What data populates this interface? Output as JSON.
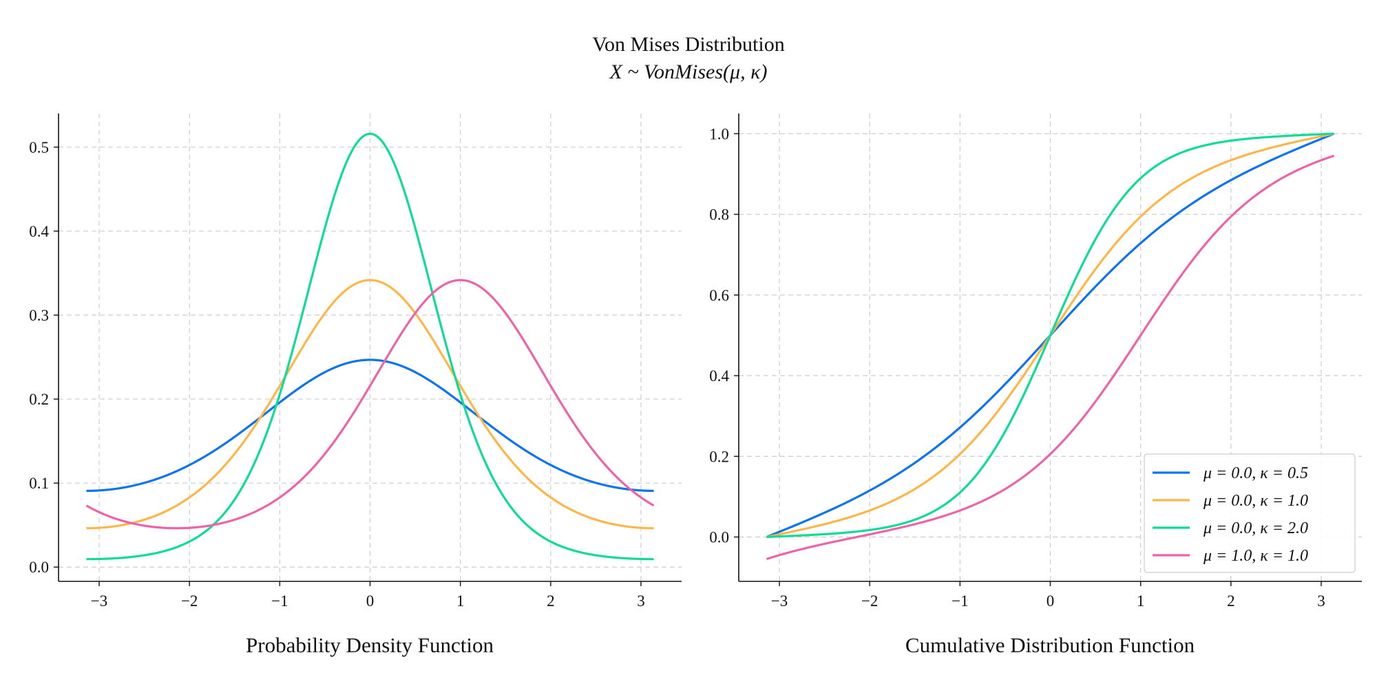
{
  "figure": {
    "title": "Von Mises Distribution",
    "subtitle": "X ~ VonMises(μ, κ)"
  },
  "colors": {
    "blue": "#0a74f0",
    "orange": "#ffb648",
    "green": "#0edc95",
    "pink": "#ee62a8",
    "grid": "#c9ccd6"
  },
  "chart_data": [
    {
      "type": "line",
      "title": "Probability Density Function",
      "xlabel": "",
      "ylabel": "",
      "xlim": [
        -3.45,
        3.45
      ],
      "ylim": [
        -0.017,
        0.54
      ],
      "xticks": [
        -3,
        -2,
        -1,
        0,
        1,
        2,
        3
      ],
      "xtick_labels": [
        "−3",
        "−2",
        "−1",
        "0",
        "1",
        "2",
        "3"
      ],
      "yticks": [
        0.0,
        0.1,
        0.2,
        0.3,
        0.4,
        0.5
      ],
      "ytick_labels": [
        "0.0",
        "0.1",
        "0.2",
        "0.3",
        "0.4",
        "0.5"
      ],
      "grid": true,
      "series": [
        {
          "name": "μ = 0.0, κ = 0.5",
          "color": "blue",
          "kind": "pdf",
          "mu": 0.0,
          "kappa": 0.5
        },
        {
          "name": "μ = 0.0, κ = 1.0",
          "color": "orange",
          "kind": "pdf",
          "mu": 0.0,
          "kappa": 1.0
        },
        {
          "name": "μ = 0.0, κ = 2.0",
          "color": "green",
          "kind": "pdf",
          "mu": 0.0,
          "kappa": 2.0
        },
        {
          "name": "μ = 1.0, κ = 1.0",
          "color": "pink",
          "kind": "pdf",
          "mu": 1.0,
          "kappa": 1.0
        }
      ]
    },
    {
      "type": "line",
      "title": "Cumulative Distribution Function",
      "xlabel": "",
      "ylabel": "",
      "xlim": [
        -3.45,
        3.45
      ],
      "ylim": [
        -0.11,
        1.05
      ],
      "xticks": [
        -3,
        -2,
        -1,
        0,
        1,
        2,
        3
      ],
      "xtick_labels": [
        "−3",
        "−2",
        "−1",
        "0",
        "1",
        "2",
        "3"
      ],
      "yticks": [
        0.0,
        0.2,
        0.4,
        0.6,
        0.8,
        1.0
      ],
      "ytick_labels": [
        "0.0",
        "0.2",
        "0.4",
        "0.6",
        "0.8",
        "1.0"
      ],
      "grid": true,
      "legend": "lower-right",
      "series": [
        {
          "name": "μ = 0.0, κ = 0.5",
          "color": "blue",
          "kind": "cdf",
          "mu": 0.0,
          "kappa": 0.5
        },
        {
          "name": "μ = 0.0, κ = 1.0",
          "color": "orange",
          "kind": "cdf",
          "mu": 0.0,
          "kappa": 1.0
        },
        {
          "name": "μ = 0.0, κ = 2.0",
          "color": "green",
          "kind": "cdf",
          "mu": 0.0,
          "kappa": 2.0
        },
        {
          "name": "μ = 1.0, κ = 1.0",
          "color": "pink",
          "kind": "cdf",
          "mu": 1.0,
          "kappa": 1.0
        }
      ]
    }
  ]
}
